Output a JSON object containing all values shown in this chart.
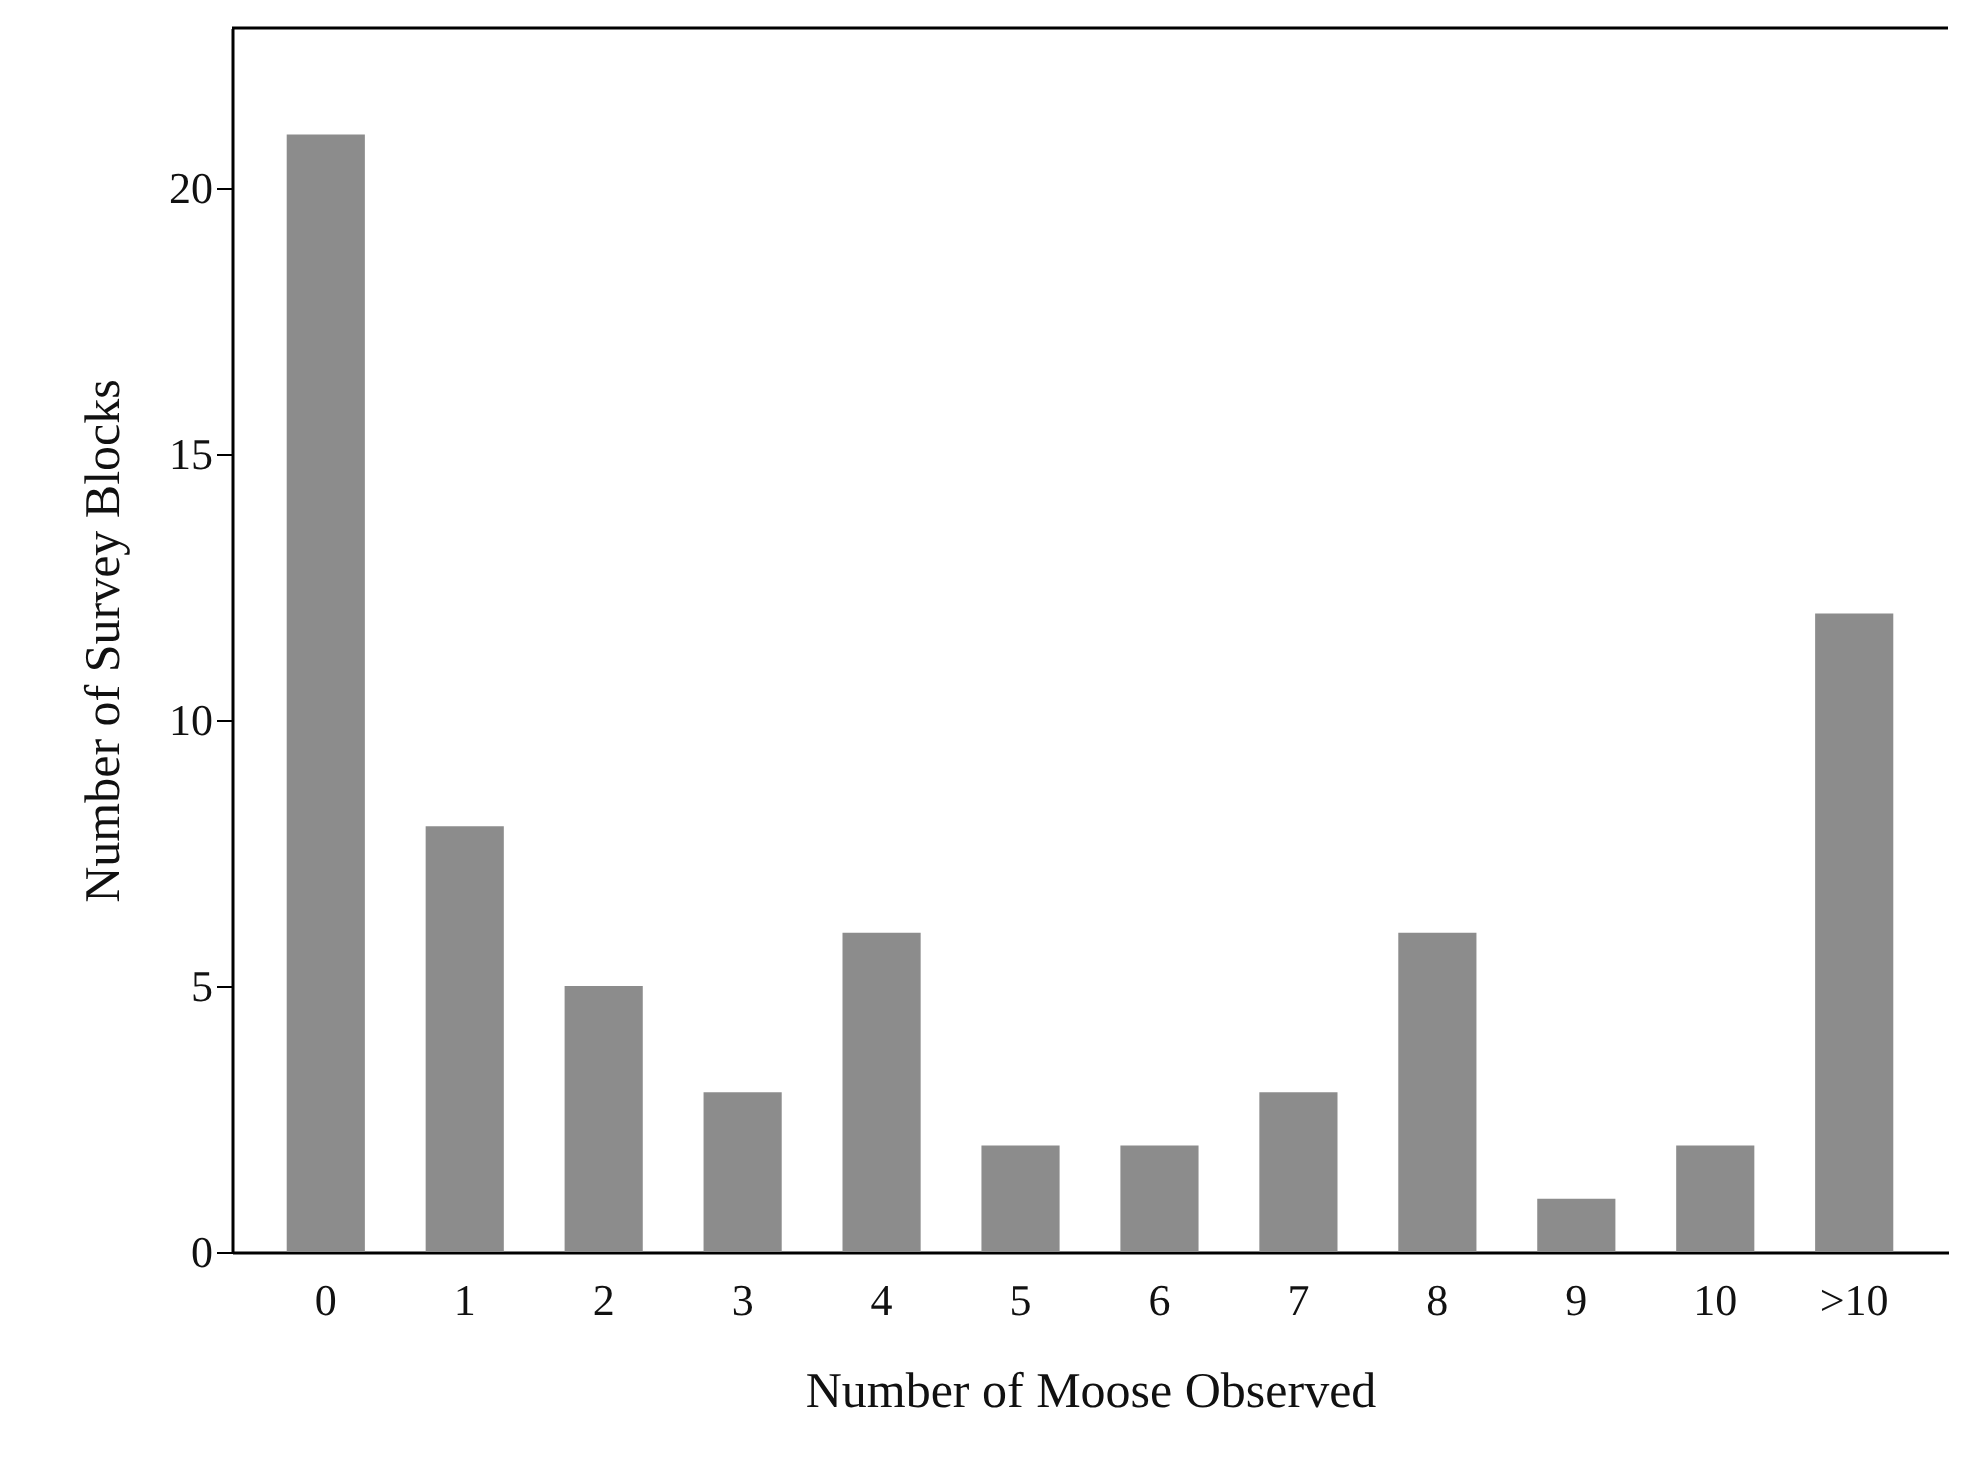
{
  "chart_data": {
    "type": "bar",
    "xlabel": "Number of Moose Observed",
    "ylabel": "Number of Survey Blocks",
    "categories": [
      "0",
      "1",
      "2",
      "3",
      "4",
      "5",
      "6",
      "7",
      "8",
      "9",
      "10",
      ">10"
    ],
    "values": [
      21,
      8,
      5,
      3,
      6,
      2,
      2,
      3,
      6,
      1,
      2,
      12
    ],
    "color": "#8c8c8c",
    "ylim": [
      0,
      23
    ],
    "yticks": [
      0,
      5,
      10,
      15,
      20
    ],
    "grid": false
  }
}
